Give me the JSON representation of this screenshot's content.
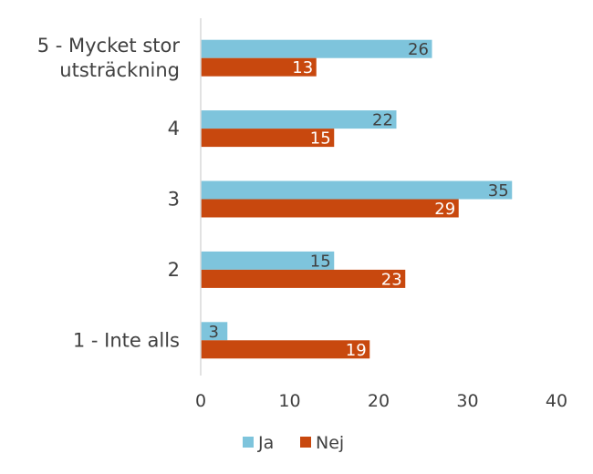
{
  "chart_data": {
    "type": "bar",
    "orientation": "horizontal",
    "categories": [
      "5 - Mycket stor utsträckning",
      "4",
      "3",
      "2",
      "1 - Inte alls"
    ],
    "category_lines": [
      [
        "5 - Mycket stor",
        "utsträckning"
      ],
      [
        "4"
      ],
      [
        "3"
      ],
      [
        "2"
      ],
      [
        "1 - Inte alls"
      ]
    ],
    "series": [
      {
        "name": "Ja",
        "values": [
          26,
          22,
          35,
          15,
          3
        ],
        "color": "#7ec4dc",
        "label_color": "#404040"
      },
      {
        "name": "Nej",
        "values": [
          13,
          15,
          29,
          23,
          19
        ],
        "color": "#c8480e",
        "label_color": "#ffffff"
      }
    ],
    "xlim": [
      0,
      40
    ],
    "x_ticks": [
      0,
      10,
      20,
      30,
      40
    ],
    "grid": false,
    "legend_position": "bottom",
    "title": "",
    "xlabel": "",
    "ylabel": ""
  }
}
